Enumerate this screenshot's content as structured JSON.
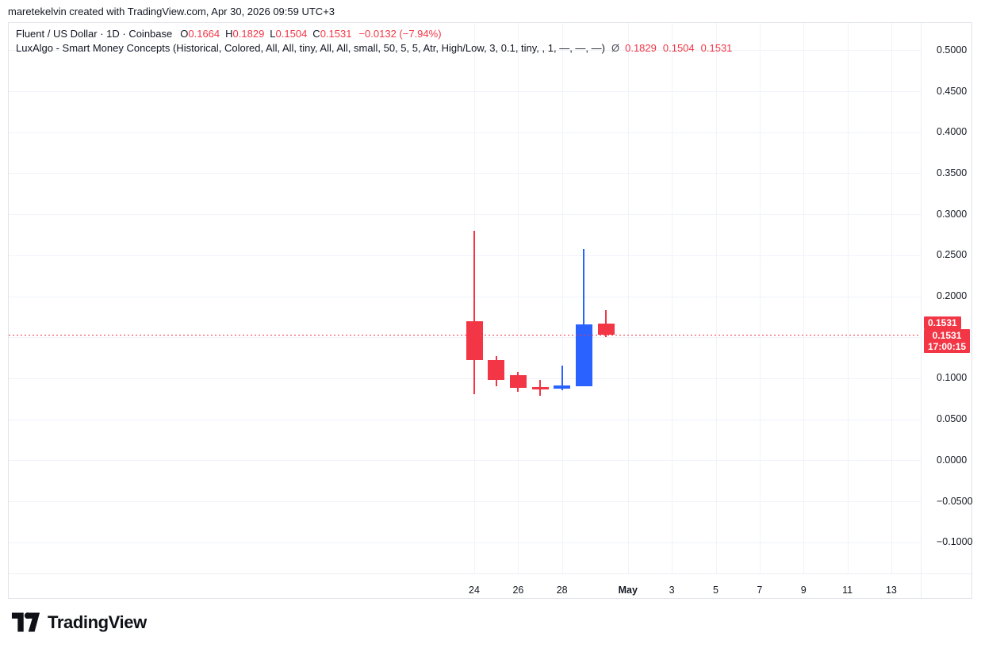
{
  "attribution": "maretekelvin created with TradingView.com, Apr 30, 2026 09:59 UTC+3",
  "header": {
    "symbol_line": {
      "title": "Fluent / US Dollar · 1D · Coinbase",
      "ohlc": [
        {
          "label": "O",
          "value": "0.1664"
        },
        {
          "label": "H",
          "value": "0.1829"
        },
        {
          "label": "L",
          "value": "0.1504"
        },
        {
          "label": "C",
          "value": "0.1531"
        }
      ],
      "change": "−0.0132 (−7.94%)"
    },
    "indicator_line": {
      "name": "LuxAlgo - Smart Money Concepts (Historical, Colored, All, All, tiny, All, All, small, 50, 5, 5, Atr, High/Low, 3, 0.1, tiny, , 1, —, —, —)",
      "symbol": "Ø",
      "values": [
        "0.1829",
        "0.1504",
        "0.1531"
      ]
    }
  },
  "chart_data": {
    "type": "candlestick",
    "title": "Fluent / US Dollar 1D Coinbase",
    "grid": true,
    "colors": {
      "up": "#2962ff",
      "down": "#f23645",
      "grid": "#f0f3fa",
      "price_line": "#f23645"
    },
    "y_axis": {
      "top_price": 0.5332,
      "bottom_price": -0.138,
      "ticks": [
        {
          "price": 0.5,
          "label": "0.5000"
        },
        {
          "price": 0.45,
          "label": "0.4500"
        },
        {
          "price": 0.4,
          "label": "0.4000"
        },
        {
          "price": 0.35,
          "label": "0.3500"
        },
        {
          "price": 0.3,
          "label": "0.3000"
        },
        {
          "price": 0.25,
          "label": "0.2500"
        },
        {
          "price": 0.2,
          "label": "0.2000"
        },
        {
          "price": 0.15,
          "label": ""
        },
        {
          "price": 0.1,
          "label": "0.1000"
        },
        {
          "price": 0.05,
          "label": "0.0500"
        },
        {
          "price": 0.0,
          "label": "0.0000"
        },
        {
          "price": -0.05,
          "label": "−0.0500"
        },
        {
          "price": -0.1,
          "label": "−0.1000"
        }
      ]
    },
    "x_axis": {
      "min_day": -21.21,
      "max_day": 20.34,
      "ticks": [
        {
          "day": 0,
          "label": "24",
          "bold": false
        },
        {
          "day": 2,
          "label": "26",
          "bold": false
        },
        {
          "day": 4,
          "label": "28",
          "bold": false
        },
        {
          "day": 7,
          "label": "May",
          "bold": true
        },
        {
          "day": 9,
          "label": "3",
          "bold": false
        },
        {
          "day": 11,
          "label": "5",
          "bold": false
        },
        {
          "day": 13,
          "label": "7",
          "bold": false
        },
        {
          "day": 15,
          "label": "9",
          "bold": false
        },
        {
          "day": 17,
          "label": "11",
          "bold": false
        },
        {
          "day": 19,
          "label": "13",
          "bold": false
        }
      ]
    },
    "candles": [
      {
        "date": "Apr 24",
        "day": 0,
        "open": 0.17,
        "high": 0.2798,
        "low": 0.0808,
        "close": 0.1224,
        "direction": "down"
      },
      {
        "date": "Apr 25",
        "day": 1,
        "open": 0.1224,
        "high": 0.1273,
        "low": 0.0902,
        "close": 0.0983,
        "direction": "down"
      },
      {
        "date": "Apr 26",
        "day": 2,
        "open": 0.1041,
        "high": 0.1077,
        "low": 0.0832,
        "close": 0.088,
        "direction": "down"
      },
      {
        "date": "Apr 27",
        "day": 3,
        "open": 0.0896,
        "high": 0.0982,
        "low": 0.0789,
        "close": 0.087,
        "direction": "down"
      },
      {
        "date": "Apr 28",
        "day": 4,
        "open": 0.087,
        "high": 0.1154,
        "low": 0.0858,
        "close": 0.0912,
        "direction": "up"
      },
      {
        "date": "Apr 29",
        "day": 5,
        "open": 0.09,
        "high": 0.2578,
        "low": 0.09,
        "close": 0.166,
        "direction": "up"
      },
      {
        "date": "Apr 30",
        "day": 6,
        "open": 0.1664,
        "high": 0.1829,
        "low": 0.1504,
        "close": 0.1531,
        "direction": "down"
      }
    ],
    "price_line": {
      "price": 0.1531
    },
    "last_price_labels": {
      "indicator_label": "0.1531",
      "price_label": "0.1531",
      "countdown": "17:00:15"
    }
  },
  "footer": {
    "logo_text": "TradingView"
  }
}
